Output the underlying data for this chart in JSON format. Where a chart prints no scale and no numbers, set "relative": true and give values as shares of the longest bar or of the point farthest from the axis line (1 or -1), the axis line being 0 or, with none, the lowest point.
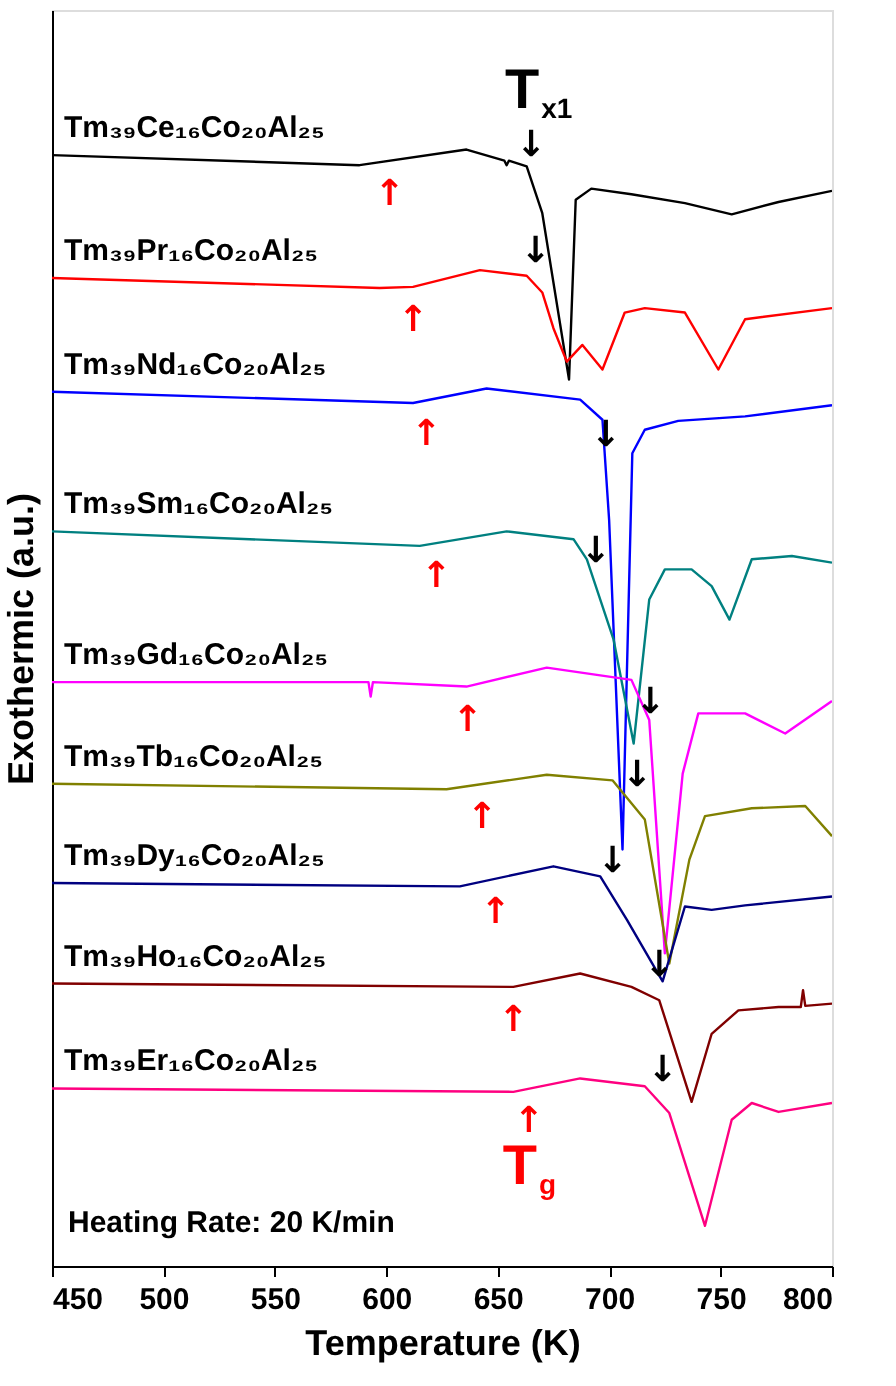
{
  "chart_data": {
    "type": "line",
    "relative": true,
    "xlabel": "Temperature (K)",
    "ylabel": "Exothermic (a.u.)",
    "xlim": [
      450,
      800
    ],
    "xticks": [
      450,
      500,
      550,
      600,
      650,
      700,
      750,
      800
    ],
    "grid": false,
    "legend": false,
    "tick_labels": "x",
    "line_style": "solid",
    "marker": "none",
    "series": [
      {
        "name": "Tm₃₉Ce₁₆Co₂₀Al₂₅",
        "color": "#000000",
        "x": [
          450,
          588,
          636,
          653,
          654,
          655,
          663,
          670,
          682,
          685,
          692,
          710,
          734,
          755,
          776,
          800
        ],
        "values": [
          0.995,
          0.986,
          1.0,
          0.99,
          0.986,
          0.99,
          0.985,
          0.943,
          0.794,
          0.955,
          0.965,
          0.96,
          0.952,
          0.942,
          0.953,
          0.963
        ]
      },
      {
        "name": "Tm₃₉Pr₁₆Co₂₀Al₂₅",
        "color": "#ff0000",
        "x": [
          450,
          597,
          612,
          642,
          663,
          670,
          675,
          681,
          688,
          697,
          707,
          716,
          734,
          749,
          761,
          800
        ],
        "values": [
          0.885,
          0.876,
          0.877,
          0.892,
          0.887,
          0.872,
          0.84,
          0.81,
          0.825,
          0.803,
          0.854,
          0.858,
          0.854,
          0.803,
          0.848,
          0.858
        ]
      },
      {
        "name": "Tm₃₉Nd₁₆Co₂₀Al₂₅",
        "color": "#0000ff",
        "x": [
          450,
          612,
          645,
          687,
          697,
          700,
          706,
          710.4,
          716,
          731,
          761,
          800
        ],
        "values": [
          0.783,
          0.773,
          0.786,
          0.776,
          0.758,
          0.668,
          0.373,
          0.728,
          0.749,
          0.757,
          0.761,
          0.771
        ]
      },
      {
        "name": "Tm₃₉Sm₁₆Co₂₀Al₂₅",
        "color": "#008080",
        "x": [
          450,
          615,
          654,
          684,
          690,
          702,
          711,
          718,
          725,
          737,
          746,
          754,
          764,
          782,
          800
        ],
        "values": [
          0.658,
          0.645,
          0.658,
          0.651,
          0.633,
          0.561,
          0.468,
          0.597,
          0.624,
          0.624,
          0.609,
          0.579,
          0.633,
          0.636,
          0.63
        ]
      },
      {
        "name": "Tm₃₉Gd₁₆Co₂₀Al₂₅",
        "color": "#ff00ff",
        "x": [
          450,
          592,
          593,
          594,
          636,
          672,
          710,
          718,
          725,
          733,
          740,
          761,
          779,
          800
        ],
        "values": [
          0.523,
          0.523,
          0.51,
          0.523,
          0.519,
          0.536,
          0.525,
          0.489,
          0.28,
          0.441,
          0.495,
          0.495,
          0.477,
          0.506
        ]
      },
      {
        "name": "Tm₃₉Tb₁₆Co₂₀Al₂₅",
        "color": "#808000",
        "x": [
          450,
          627,
          672,
          701.5,
          716,
          727,
          736,
          743,
          764,
          788,
          800
        ],
        "values": [
          0.432,
          0.427,
          0.44,
          0.435,
          0.4,
          0.271,
          0.364,
          0.403,
          0.41,
          0.412,
          0.385
        ]
      },
      {
        "name": "Tm₃₉Dy₁₆Co₂₀Al₂₅",
        "color": "#000080",
        "x": [
          450,
          633,
          675,
          696,
          708,
          722.5,
          724,
          734,
          746,
          761,
          800
        ],
        "values": [
          0.343,
          0.34,
          0.358,
          0.349,
          0.31,
          0.26,
          0.255,
          0.322,
          0.319,
          0.323,
          0.331
        ]
      },
      {
        "name": "Tm₃₉Ho₁₆Co₂₀Al₂₅",
        "color": "#800000",
        "x": [
          450,
          657,
          687,
          710,
          722.5,
          737,
          746,
          758,
          776,
          786,
          787,
          788,
          800
        ],
        "values": [
          0.253,
          0.25,
          0.262,
          0.25,
          0.238,
          0.147,
          0.208,
          0.229,
          0.232,
          0.232,
          0.247,
          0.233,
          0.235
        ]
      },
      {
        "name": "Tm₃₉Er₁₆Co₂₀Al₂₅",
        "color": "#ff0080",
        "x": [
          450,
          657,
          687,
          716,
          727,
          743,
          755,
          764,
          776,
          800
        ],
        "values": [
          0.159,
          0.156,
          0.168,
          0.161,
          0.137,
          0.036,
          0.131,
          0.146,
          0.138,
          0.146
        ]
      }
    ],
    "annotations": [
      {
        "text": "T$_{x1}$",
        "x": 665,
        "y": 0.973
      },
      {
        "text": "↓",
        "x": 665,
        "y": 0.973
      },
      {
        "text": "↓",
        "x": 667,
        "y": 0.878
      },
      {
        "text": "↓",
        "x": 698.5,
        "y": 0.713
      },
      {
        "text": "↓",
        "x": 694,
        "y": 0.609
      },
      {
        "text": "↓",
        "x": 718.5,
        "y": 0.474
      },
      {
        "text": "↓",
        "x": 712.5,
        "y": 0.408
      },
      {
        "text": "↓",
        "x": 701.5,
        "y": 0.331
      },
      {
        "text": "↓",
        "x": 722.5,
        "y": 0.238
      },
      {
        "text": "↓",
        "x": 724,
        "y": 0.144
      },
      {
        "text": "T$_{g}$",
        "x": 664,
        "y": 0.159
      },
      {
        "text": "↑",
        "x": 601.5,
        "y": 0.99
      },
      {
        "text": "↑",
        "x": 612,
        "y": 0.877
      },
      {
        "text": "↑",
        "x": 618,
        "y": 0.775
      },
      {
        "text": "↑",
        "x": 622.5,
        "y": 0.648
      },
      {
        "text": "↑",
        "x": 636.5,
        "y": 0.519
      },
      {
        "text": "↑",
        "x": 643,
        "y": 0.432
      },
      {
        "text": "↑",
        "x": 649,
        "y": 0.347
      },
      {
        "text": "↑",
        "x": 657,
        "y": 0.25
      },
      {
        "text": "↑",
        "x": 664,
        "y": 0.159
      },
      "Heating Rate: 20 K/min"
    ]
  }
}
